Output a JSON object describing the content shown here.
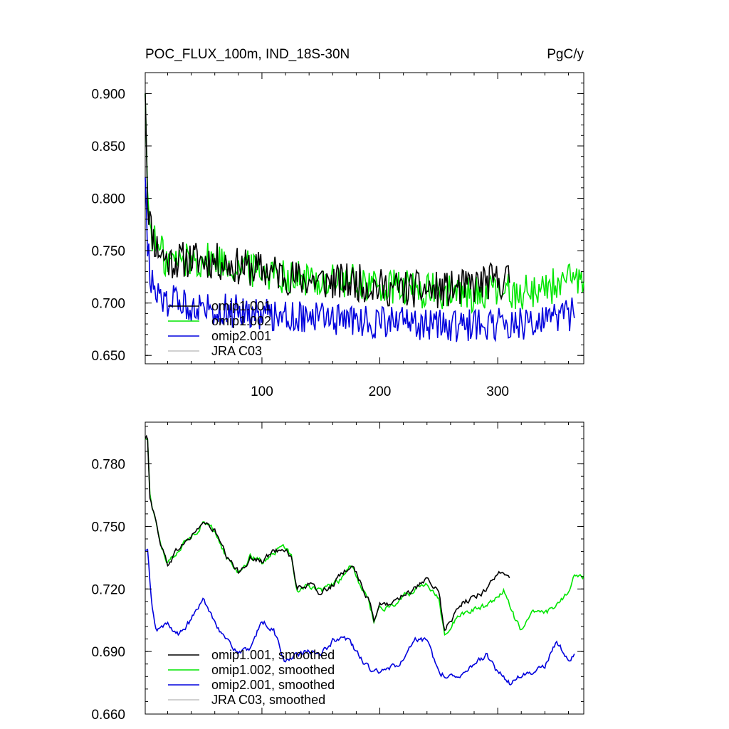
{
  "chart_data": [
    {
      "type": "line",
      "title": "POC_FLUX_100m, IND_18S-30N",
      "units": "PgC/y",
      "xlim": [
        1,
        373
      ],
      "ylim": [
        0.642,
        0.92
      ],
      "x_ticks": [
        100,
        200,
        300
      ],
      "y_ticks": [
        0.65,
        0.7,
        0.75,
        0.8,
        0.85,
        0.9
      ],
      "y_tick_labels": [
        "0.650",
        "0.700",
        "0.750",
        "0.800",
        "0.850",
        "0.900"
      ],
      "legend": [
        "omip1.001",
        "omip1.002",
        "omip2.001",
        "JRA C03"
      ],
      "legend_placement": "bottom-left",
      "series": [
        {
          "name": "omip1.001",
          "color": "#000000",
          "x_range": [
            1,
            310
          ],
          "anchors": [
            [
              1,
              0.9
            ],
            [
              3,
              0.8
            ],
            [
              6,
              0.77
            ],
            [
              10,
              0.755
            ],
            [
              20,
              0.74
            ],
            [
              40,
              0.742
            ],
            [
              60,
              0.74
            ],
            [
              80,
              0.735
            ],
            [
              110,
              0.73
            ],
            [
              130,
              0.723
            ],
            [
              160,
              0.72
            ],
            [
              180,
              0.72
            ],
            [
              200,
              0.715
            ],
            [
              230,
              0.713
            ],
            [
              250,
              0.712
            ],
            [
              270,
              0.714
            ],
            [
              290,
              0.72
            ],
            [
              310,
              0.722
            ]
          ],
          "noise": 0.018
        },
        {
          "name": "omip1.002",
          "color": "#00e600",
          "x_range": [
            1,
            373
          ],
          "anchors": [
            [
              1,
              0.9
            ],
            [
              3,
              0.8
            ],
            [
              6,
              0.77
            ],
            [
              10,
              0.755
            ],
            [
              20,
              0.74
            ],
            [
              40,
              0.742
            ],
            [
              60,
              0.74
            ],
            [
              80,
              0.735
            ],
            [
              110,
              0.73
            ],
            [
              130,
              0.723
            ],
            [
              160,
              0.72
            ],
            [
              180,
              0.72
            ],
            [
              200,
              0.715
            ],
            [
              230,
              0.713
            ],
            [
              250,
              0.71
            ],
            [
              270,
              0.708
            ],
            [
              300,
              0.71
            ],
            [
              330,
              0.712
            ],
            [
              350,
              0.718
            ],
            [
              373,
              0.722
            ]
          ],
          "noise": 0.018
        },
        {
          "name": "omip2.001",
          "color": "#0000dd",
          "x_range": [
            1,
            365
          ],
          "anchors": [
            [
              1,
              0.82
            ],
            [
              3,
              0.76
            ],
            [
              6,
              0.72
            ],
            [
              10,
              0.705
            ],
            [
              30,
              0.7
            ],
            [
              60,
              0.695
            ],
            [
              100,
              0.69
            ],
            [
              130,
              0.688
            ],
            [
              160,
              0.685
            ],
            [
              200,
              0.682
            ],
            [
              230,
              0.68
            ],
            [
              260,
              0.678
            ],
            [
              300,
              0.68
            ],
            [
              340,
              0.682
            ],
            [
              365,
              0.69
            ]
          ],
          "noise": 0.016
        },
        {
          "name": "JRA C03",
          "color": "#c0c0c0",
          "x_range": [],
          "anchors": [],
          "noise": 0
        }
      ]
    },
    {
      "type": "line",
      "title": "",
      "xlim": [
        1,
        373
      ],
      "ylim": [
        0.66,
        0.8
      ],
      "x_ticks": [
        100,
        200,
        300
      ],
      "y_ticks": [
        0.66,
        0.69,
        0.72,
        0.75,
        0.78
      ],
      "y_tick_labels": [
        "0.660",
        "0.690",
        "0.720",
        "0.750",
        "0.780"
      ],
      "legend": [
        "omip1.001, smoothed",
        "omip1.002, smoothed",
        "omip2.001, smoothed",
        "JRA C03, smoothed"
      ],
      "legend_placement": "bottom-left",
      "series": [
        {
          "name": "omip1.001, smoothed",
          "color": "#000000",
          "x_range": [
            1,
            310
          ],
          "anchors": [
            [
              3,
              0.792
            ],
            [
              5,
              0.765
            ],
            [
              10,
              0.752
            ],
            [
              15,
              0.74
            ],
            [
              20,
              0.732
            ],
            [
              30,
              0.74
            ],
            [
              40,
              0.745
            ],
            [
              50,
              0.752
            ],
            [
              60,
              0.748
            ],
            [
              70,
              0.735
            ],
            [
              80,
              0.728
            ],
            [
              90,
              0.735
            ],
            [
              100,
              0.733
            ],
            [
              110,
              0.738
            ],
            [
              120,
              0.74
            ],
            [
              125,
              0.735
            ],
            [
              130,
              0.72
            ],
            [
              140,
              0.722
            ],
            [
              150,
              0.718
            ],
            [
              160,
              0.722
            ],
            [
              170,
              0.728
            ],
            [
              175,
              0.732
            ],
            [
              180,
              0.728
            ],
            [
              190,
              0.715
            ],
            [
              195,
              0.705
            ],
            [
              200,
              0.712
            ],
            [
              210,
              0.713
            ],
            [
              220,
              0.718
            ],
            [
              230,
              0.72
            ],
            [
              240,
              0.724
            ],
            [
              250,
              0.718
            ],
            [
              255,
              0.7
            ],
            [
              260,
              0.705
            ],
            [
              270,
              0.713
            ],
            [
              280,
              0.716
            ],
            [
              290,
              0.72
            ],
            [
              300,
              0.728
            ],
            [
              310,
              0.725
            ]
          ],
          "noise": 0.003
        },
        {
          "name": "omip1.002, smoothed",
          "color": "#00e600",
          "x_range": [
            1,
            373
          ],
          "anchors": [
            [
              3,
              0.792
            ],
            [
              5,
              0.765
            ],
            [
              10,
              0.752
            ],
            [
              15,
              0.74
            ],
            [
              20,
              0.732
            ],
            [
              30,
              0.74
            ],
            [
              40,
              0.745
            ],
            [
              50,
              0.752
            ],
            [
              60,
              0.748
            ],
            [
              70,
              0.735
            ],
            [
              80,
              0.728
            ],
            [
              90,
              0.735
            ],
            [
              100,
              0.733
            ],
            [
              110,
              0.738
            ],
            [
              120,
              0.74
            ],
            [
              125,
              0.735
            ],
            [
              130,
              0.72
            ],
            [
              140,
              0.722
            ],
            [
              150,
              0.718
            ],
            [
              160,
              0.722
            ],
            [
              170,
              0.726
            ],
            [
              175,
              0.73
            ],
            [
              180,
              0.726
            ],
            [
              190,
              0.715
            ],
            [
              195,
              0.705
            ],
            [
              200,
              0.71
            ],
            [
              210,
              0.712
            ],
            [
              220,
              0.716
            ],
            [
              230,
              0.72
            ],
            [
              240,
              0.723
            ],
            [
              250,
              0.716
            ],
            [
              255,
              0.698
            ],
            [
              260,
              0.703
            ],
            [
              270,
              0.708
            ],
            [
              280,
              0.71
            ],
            [
              290,
              0.712
            ],
            [
              300,
              0.716
            ],
            [
              305,
              0.72
            ],
            [
              315,
              0.705
            ],
            [
              320,
              0.7
            ],
            [
              330,
              0.71
            ],
            [
              340,
              0.708
            ],
            [
              350,
              0.712
            ],
            [
              360,
              0.718
            ],
            [
              365,
              0.728
            ],
            [
              373,
              0.726
            ]
          ],
          "noise": 0.003
        },
        {
          "name": "omip2.001, smoothed",
          "color": "#0000dd",
          "x_range": [
            1,
            365
          ],
          "anchors": [
            [
              3,
              0.738
            ],
            [
              6,
              0.715
            ],
            [
              10,
              0.7
            ],
            [
              20,
              0.703
            ],
            [
              30,
              0.698
            ],
            [
              40,
              0.705
            ],
            [
              50,
              0.715
            ],
            [
              60,
              0.705
            ],
            [
              70,
              0.695
            ],
            [
              80,
              0.69
            ],
            [
              90,
              0.69
            ],
            [
              100,
              0.705
            ],
            [
              110,
              0.7
            ],
            [
              120,
              0.685
            ],
            [
              130,
              0.688
            ],
            [
              140,
              0.69
            ],
            [
              150,
              0.688
            ],
            [
              160,
              0.695
            ],
            [
              170,
              0.698
            ],
            [
              180,
              0.69
            ],
            [
              190,
              0.682
            ],
            [
              200,
              0.68
            ],
            [
              210,
              0.682
            ],
            [
              220,
              0.686
            ],
            [
              230,
              0.695
            ],
            [
              240,
              0.695
            ],
            [
              250,
              0.68
            ],
            [
              260,
              0.678
            ],
            [
              270,
              0.68
            ],
            [
              280,
              0.684
            ],
            [
              290,
              0.688
            ],
            [
              300,
              0.68
            ],
            [
              310,
              0.675
            ],
            [
              320,
              0.678
            ],
            [
              330,
              0.68
            ],
            [
              340,
              0.683
            ],
            [
              350,
              0.695
            ],
            [
              360,
              0.686
            ],
            [
              365,
              0.688
            ]
          ],
          "noise": 0.003
        },
        {
          "name": "JRA C03, smoothed",
          "color": "#c0c0c0",
          "x_range": [],
          "anchors": [],
          "noise": 0
        }
      ]
    }
  ]
}
